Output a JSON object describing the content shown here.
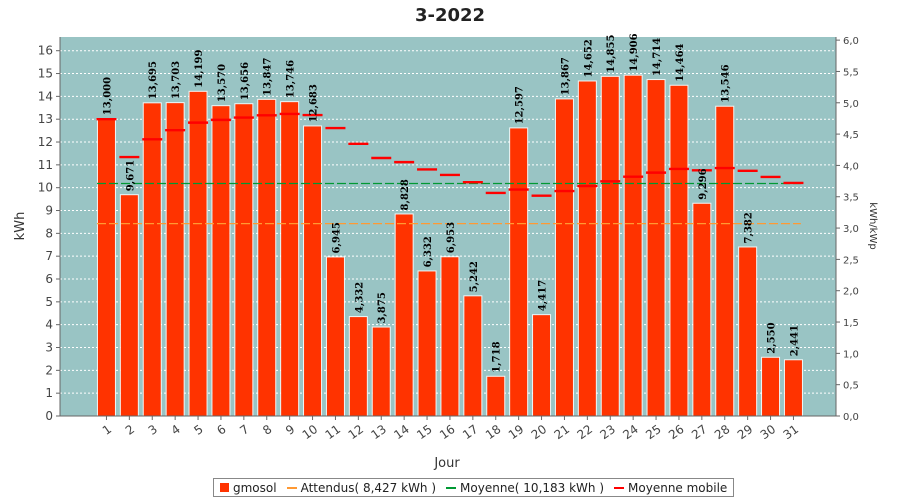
{
  "chart_data": {
    "type": "bar",
    "title": "3-2022",
    "xlabel": "Jour",
    "ylabel": "kWh",
    "y2label": "kWh/kWp",
    "ylim": [
      0,
      16.6
    ],
    "y2lim": [
      0,
      6.05
    ],
    "yticks": [
      "0",
      "1",
      "2",
      "3",
      "4",
      "5",
      "6",
      "7",
      "8",
      "9",
      "10",
      "11",
      "12",
      "13",
      "14",
      "15",
      "16"
    ],
    "y2ticks": [
      "0,0",
      "0,5",
      "1,0",
      "1,5",
      "2,0",
      "2,5",
      "3,0",
      "3,5",
      "4,0",
      "4,5",
      "5,0",
      "5,5",
      "6,0"
    ],
    "categories": [
      "1",
      "2",
      "3",
      "4",
      "5",
      "6",
      "7",
      "8",
      "9",
      "10",
      "11",
      "12",
      "13",
      "14",
      "15",
      "16",
      "17",
      "18",
      "19",
      "20",
      "21",
      "22",
      "23",
      "24",
      "25",
      "26",
      "27",
      "28",
      "29",
      "30",
      "31"
    ],
    "series": [
      {
        "name": "gmosol",
        "values": [
          13.0,
          9.671,
          13.695,
          13.703,
          14.199,
          13.57,
          13.656,
          13.847,
          13.746,
          12.683,
          6.945,
          4.332,
          3.875,
          8.828,
          6.332,
          6.953,
          5.242,
          1.718,
          12.597,
          4.417,
          13.867,
          14.652,
          14.855,
          14.906,
          14.714,
          14.464,
          9.296,
          13.546,
          7.382,
          2.55,
          2.441
        ],
        "labels": [
          "13,000",
          "9,671",
          "13,695",
          "13,703",
          "14,199",
          "13,570",
          "13,656",
          "13,847",
          "13,746",
          "12,683",
          "6,945",
          "4,332",
          "3,875",
          "8,828",
          "6,332",
          "6,953",
          "5,242",
          "1,718",
          "12,597",
          "4,417",
          "13,867",
          "14,652",
          "14,855",
          "14,906",
          "14,714",
          "14,464",
          "9,296",
          "13,546",
          "7,382",
          "2,550",
          "2,441"
        ],
        "color": "#ff3300"
      },
      {
        "name": "Moyenne mobile",
        "values": [
          13.0,
          11.34,
          12.12,
          12.52,
          12.85,
          12.97,
          13.07,
          13.17,
          13.23,
          13.18,
          12.61,
          11.92,
          11.3,
          11.12,
          10.8,
          10.56,
          10.24,
          9.77,
          9.92,
          9.65,
          9.85,
          10.07,
          10.28,
          10.48,
          10.66,
          10.82,
          10.76,
          10.86,
          10.74,
          10.47,
          10.21
        ],
        "color": "#ff0000"
      }
    ],
    "reference_lines": [
      {
        "name": "Attendus( 8,427 kWh )",
        "value": 8.427,
        "color": "#ff9933"
      },
      {
        "name": "Moyenne( 10,183 kWh )",
        "value": 10.183,
        "color": "#009933"
      }
    ],
    "legend": [
      {
        "label": "gmosol",
        "kind": "box",
        "color": "#ff3300"
      },
      {
        "label": "Attendus( 8,427 kWh )",
        "kind": "line",
        "color": "#ff9933"
      },
      {
        "label": "Moyenne( 10,183 kWh )",
        "kind": "line",
        "color": "#009933"
      },
      {
        "label": "Moyenne mobile",
        "kind": "line",
        "color": "#ff0000"
      }
    ],
    "legend_position": "bottom",
    "grid": true,
    "plot_background": "#99c4c4"
  }
}
